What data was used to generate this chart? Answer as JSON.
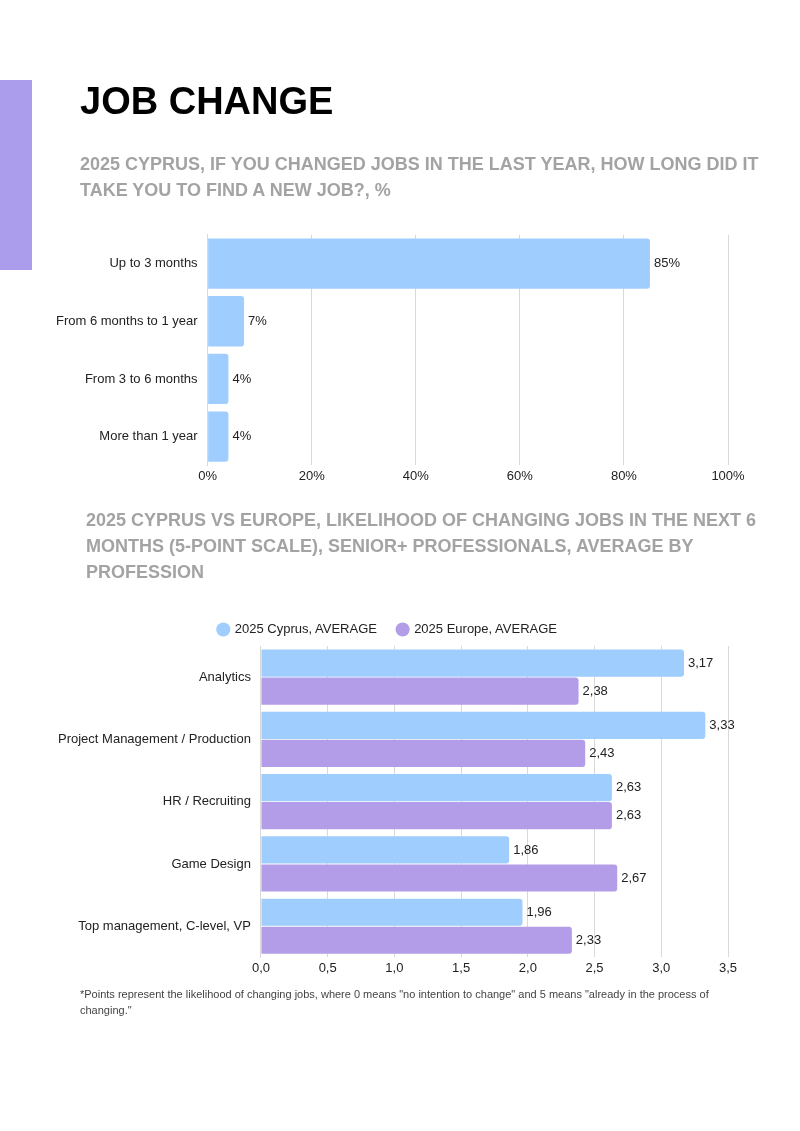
{
  "chart_data": [
    {
      "type": "bar",
      "orientation": "horizontal",
      "title": "JOB CHANGE",
      "subtitle": "2025 CYPRUS, IF YOU CHANGED JOBS IN THE LAST YEAR, HOW LONG DID IT TAKE YOU TO FIND A NEW JOB?, %",
      "categories": [
        "Up to 3 months",
        "From 6 months to 1 year",
        "From 3 to 6 months",
        "More than 1 year"
      ],
      "values": [
        85,
        7,
        4,
        4
      ],
      "color": "#9fcdfd",
      "value_labels": [
        "85%",
        "7%",
        "4%",
        "4%"
      ],
      "xlim": [
        0,
        100
      ],
      "xticks": [
        {
          "value": 0,
          "label": "0%"
        },
        {
          "value": 20,
          "label": "20%"
        },
        {
          "value": 40,
          "label": "40%"
        },
        {
          "value": 60,
          "label": "60%"
        },
        {
          "value": 80,
          "label": "80%"
        },
        {
          "value": 100,
          "label": "100%"
        }
      ],
      "grid": "x"
    },
    {
      "type": "bar",
      "orientation": "horizontal",
      "title": "2025 CYPRUS VS EUROPE, LIKELIHOOD OF CHANGING JOBS IN THE NEXT 6 MONTHS (5-POINT SCALE), SENIOR+ PROFESSIONALS, AVERAGE BY PROFESSION",
      "categories": [
        "Analytics",
        "Project Management / Production",
        "HR / Recruiting",
        "Game Design",
        "Top management, C-level, VP"
      ],
      "series": [
        {
          "name": "2025 Cyprus, AVERAGE",
          "color": "#9fcdfd",
          "values": [
            3.17,
            3.33,
            2.63,
            1.86,
            1.96
          ],
          "value_labels": [
            "3,17",
            "3,33",
            "2,63",
            "1,86",
            "1,96"
          ]
        },
        {
          "name": "2025 Europe, AVERAGE",
          "color": "#b49de8",
          "values": [
            2.38,
            2.43,
            2.63,
            2.67,
            2.33
          ],
          "value_labels": [
            "2,38",
            "2,43",
            "2,63",
            "2,67",
            "2,33"
          ]
        }
      ],
      "xlim": [
        0,
        3.5
      ],
      "xticks": [
        {
          "value": 0,
          "label": "0,0"
        },
        {
          "value": 0.5,
          "label": "0,5"
        },
        {
          "value": 1,
          "label": "1,0"
        },
        {
          "value": 1.5,
          "label": "1,5"
        },
        {
          "value": 2,
          "label": "2,0"
        },
        {
          "value": 2.5,
          "label": "2,5"
        },
        {
          "value": 3,
          "label": "3,0"
        },
        {
          "value": 3.5,
          "label": "3,5"
        }
      ],
      "grid": "x",
      "legend": "top",
      "annotations": [
        "*Points represent the likelihood of changing jobs, where 0 means \"no intention to change\" and 5 means \"already in the process of changing.\""
      ]
    }
  ]
}
